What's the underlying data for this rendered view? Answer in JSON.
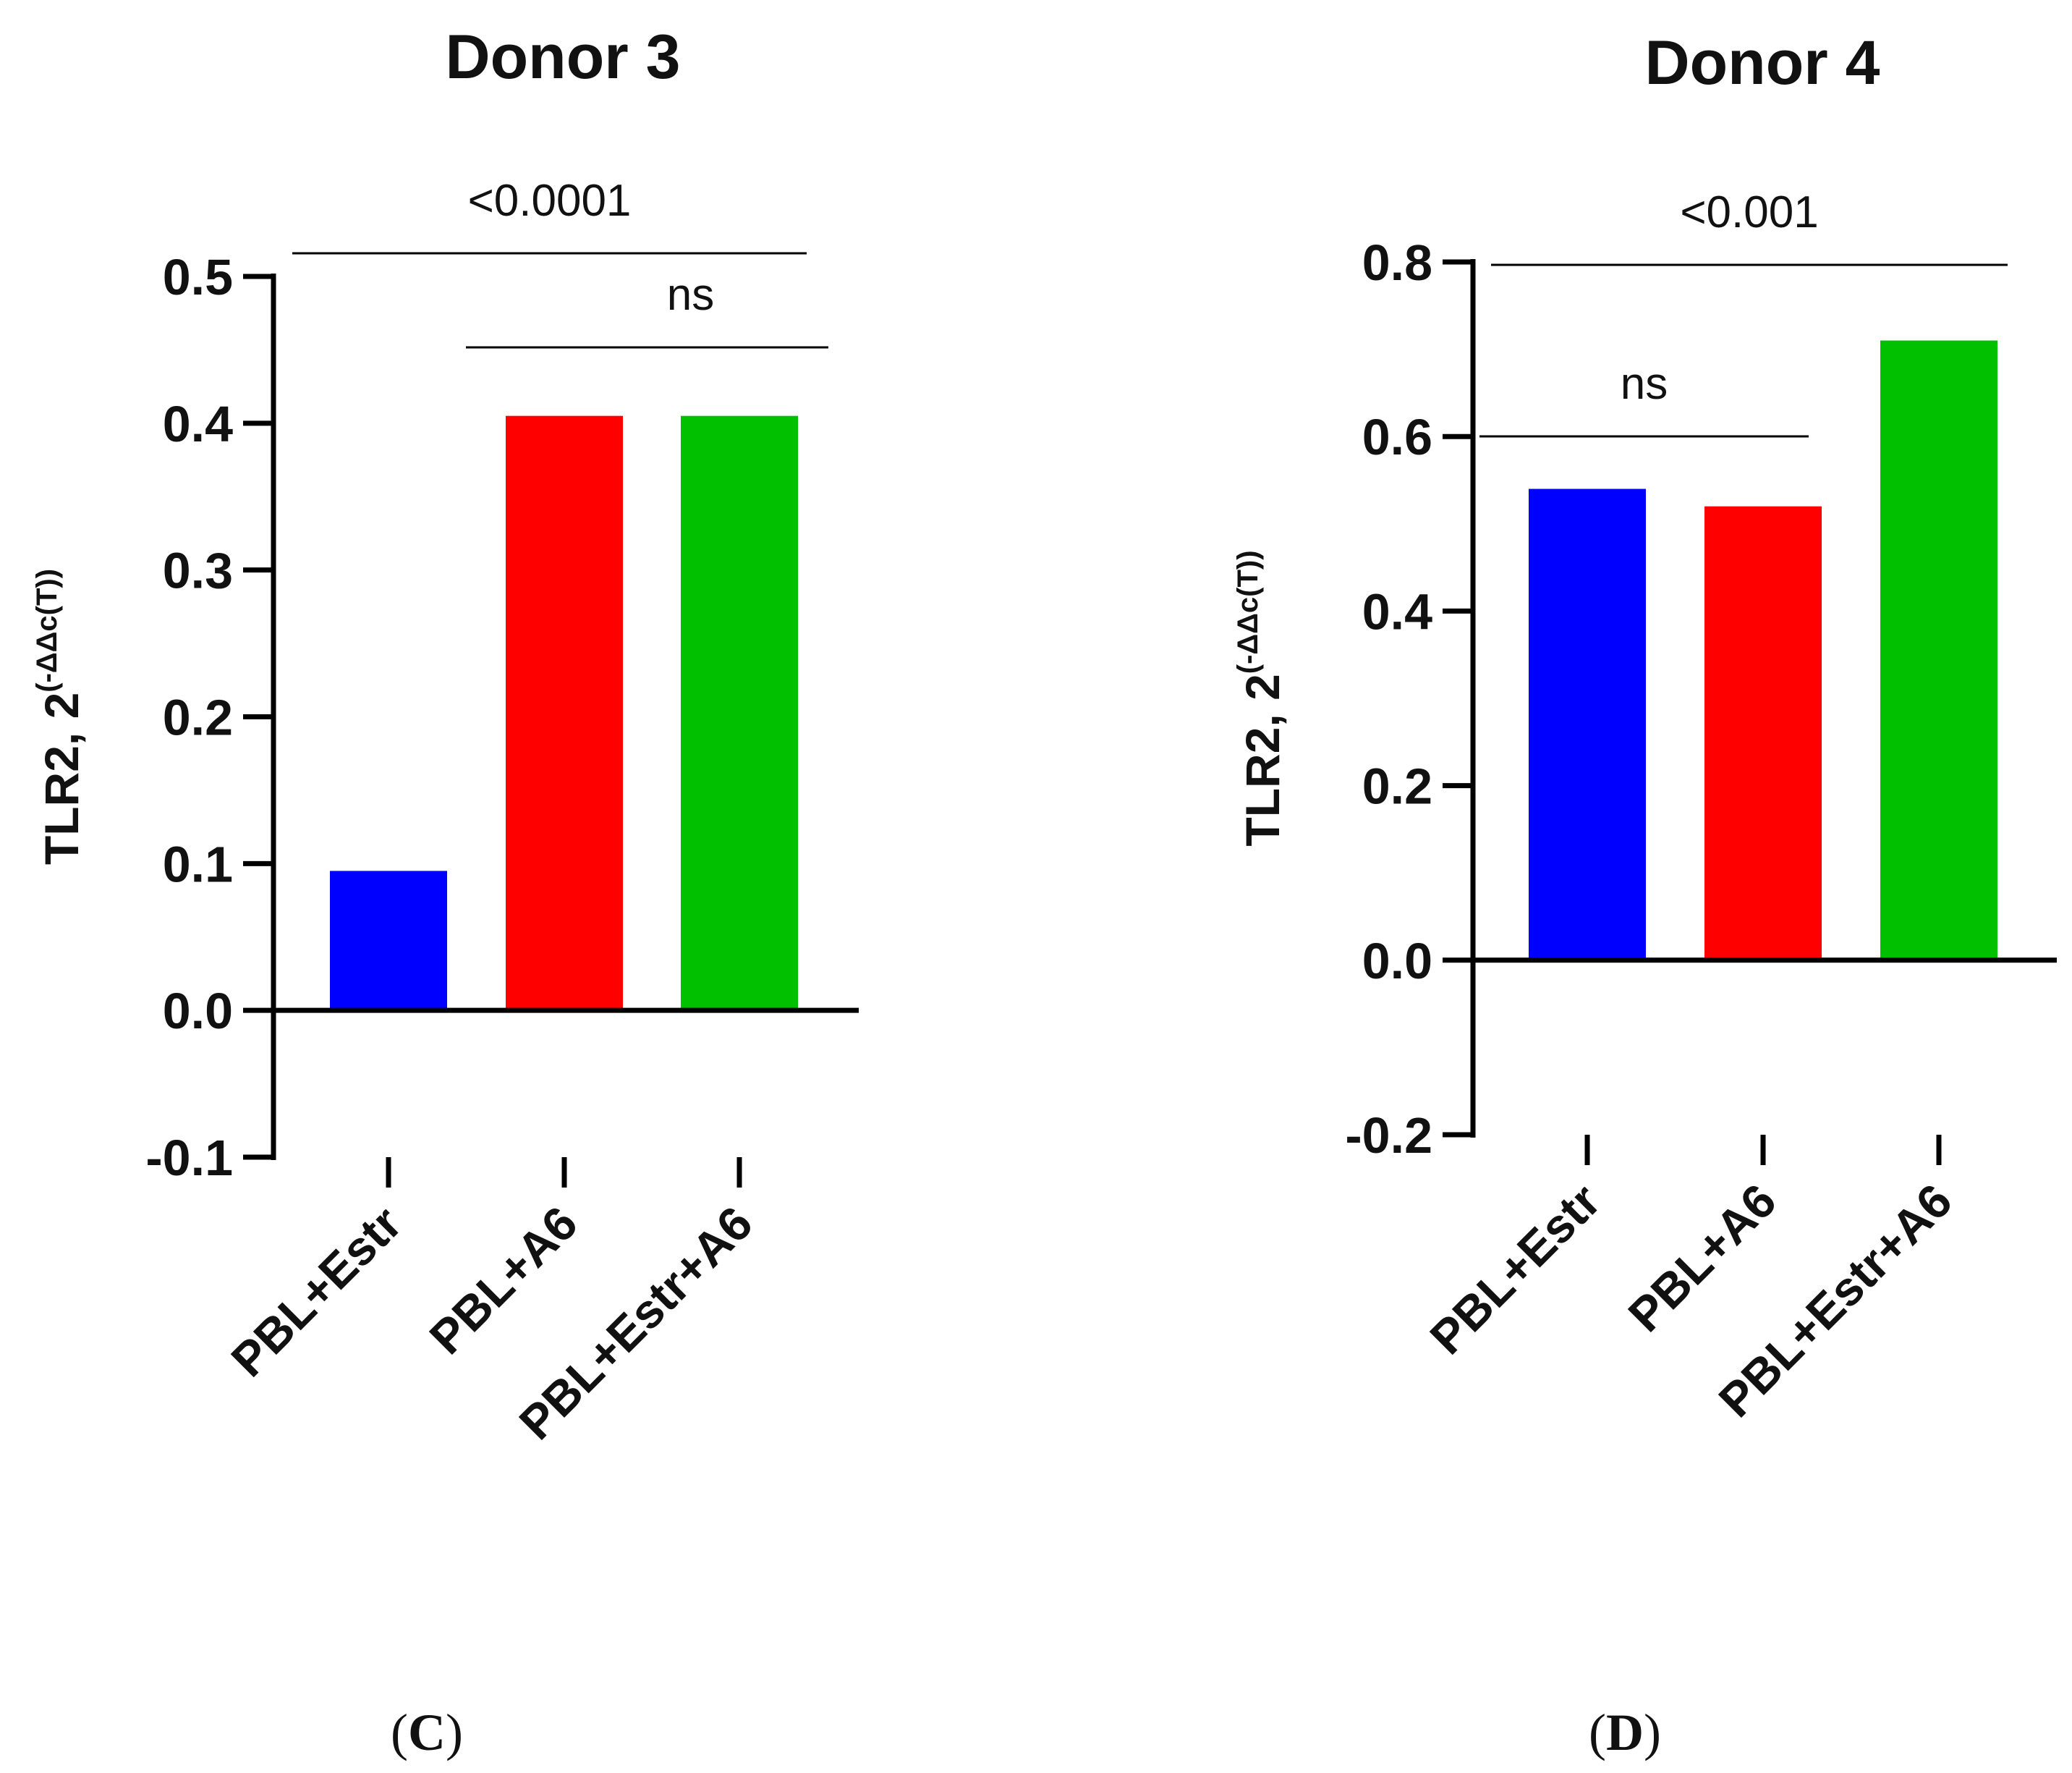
{
  "chart_data": [
    {
      "type": "bar",
      "panel_letter": "C",
      "title": "Donor 3",
      "ylabel": "TLR2, 2",
      "ylabel_sup": "(-ΔΔc(T))",
      "xlabel": "",
      "categories": [
        "PBL+Estr",
        "PBL+A6",
        "PBL+Estr+A6"
      ],
      "values": [
        0.095,
        0.405,
        0.405
      ],
      "colors": [
        "#0000ff",
        "#ff0000",
        "#00c000"
      ],
      "ylim": [
        -0.1,
        0.5
      ],
      "yticks": [
        0.5,
        0.4,
        0.3,
        0.2,
        0.1,
        0.0,
        -0.1
      ],
      "ytick_labels": [
        "0.5",
        "0.4",
        "0.3",
        "0.2",
        "0.1",
        "0.0",
        "-0.1"
      ],
      "grid": false,
      "comparisons": [
        {
          "from": 0,
          "to": 2,
          "label": "<0.0001"
        },
        {
          "from": 1,
          "to": 2,
          "label": "ns"
        }
      ]
    },
    {
      "type": "bar",
      "panel_letter": "D",
      "title": "Donor 4",
      "ylabel": "TLR2, 2",
      "ylabel_sup": "(-ΔΔc(T))",
      "xlabel": "",
      "categories": [
        "PBL+Estr",
        "PBL+A6",
        "PBL+Estr+A6"
      ],
      "values": [
        0.54,
        0.52,
        0.71
      ],
      "colors": [
        "#0000ff",
        "#ff0000",
        "#00c000"
      ],
      "ylim": [
        -0.2,
        0.8
      ],
      "yticks": [
        0.8,
        0.6,
        0.4,
        0.2,
        0.0,
        -0.2
      ],
      "ytick_labels": [
        "0.8",
        "0.6",
        "0.4",
        "0.2",
        "0.0",
        "-0.2"
      ],
      "grid": false,
      "comparisons": [
        {
          "from": 0,
          "to": 2,
          "label": "<0.001"
        },
        {
          "from": 0,
          "to": 1,
          "label": "ns"
        }
      ]
    }
  ]
}
